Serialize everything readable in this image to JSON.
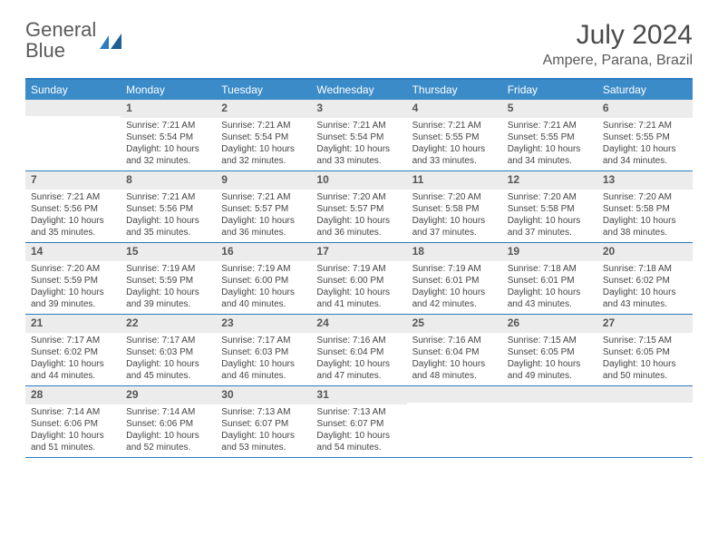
{
  "brand": {
    "part1": "General",
    "part2": "Blue"
  },
  "title": "July 2024",
  "location": "Ampere, Parana, Brazil",
  "colors": {
    "header_bar": "#3b8bc9",
    "border": "#2b7bbf",
    "daynum_bg": "#ececec",
    "text": "#444444"
  },
  "weekdays": [
    "Sunday",
    "Monday",
    "Tuesday",
    "Wednesday",
    "Thursday",
    "Friday",
    "Saturday"
  ],
  "weeks": [
    [
      {
        "n": "",
        "sr": "",
        "ss": "",
        "dl": ""
      },
      {
        "n": "1",
        "sr": "7:21 AM",
        "ss": "5:54 PM",
        "dl": "10 hours and 32 minutes."
      },
      {
        "n": "2",
        "sr": "7:21 AM",
        "ss": "5:54 PM",
        "dl": "10 hours and 32 minutes."
      },
      {
        "n": "3",
        "sr": "7:21 AM",
        "ss": "5:54 PM",
        "dl": "10 hours and 33 minutes."
      },
      {
        "n": "4",
        "sr": "7:21 AM",
        "ss": "5:55 PM",
        "dl": "10 hours and 33 minutes."
      },
      {
        "n": "5",
        "sr": "7:21 AM",
        "ss": "5:55 PM",
        "dl": "10 hours and 34 minutes."
      },
      {
        "n": "6",
        "sr": "7:21 AM",
        "ss": "5:55 PM",
        "dl": "10 hours and 34 minutes."
      }
    ],
    [
      {
        "n": "7",
        "sr": "7:21 AM",
        "ss": "5:56 PM",
        "dl": "10 hours and 35 minutes."
      },
      {
        "n": "8",
        "sr": "7:21 AM",
        "ss": "5:56 PM",
        "dl": "10 hours and 35 minutes."
      },
      {
        "n": "9",
        "sr": "7:21 AM",
        "ss": "5:57 PM",
        "dl": "10 hours and 36 minutes."
      },
      {
        "n": "10",
        "sr": "7:20 AM",
        "ss": "5:57 PM",
        "dl": "10 hours and 36 minutes."
      },
      {
        "n": "11",
        "sr": "7:20 AM",
        "ss": "5:58 PM",
        "dl": "10 hours and 37 minutes."
      },
      {
        "n": "12",
        "sr": "7:20 AM",
        "ss": "5:58 PM",
        "dl": "10 hours and 37 minutes."
      },
      {
        "n": "13",
        "sr": "7:20 AM",
        "ss": "5:58 PM",
        "dl": "10 hours and 38 minutes."
      }
    ],
    [
      {
        "n": "14",
        "sr": "7:20 AM",
        "ss": "5:59 PM",
        "dl": "10 hours and 39 minutes."
      },
      {
        "n": "15",
        "sr": "7:19 AM",
        "ss": "5:59 PM",
        "dl": "10 hours and 39 minutes."
      },
      {
        "n": "16",
        "sr": "7:19 AM",
        "ss": "6:00 PM",
        "dl": "10 hours and 40 minutes."
      },
      {
        "n": "17",
        "sr": "7:19 AM",
        "ss": "6:00 PM",
        "dl": "10 hours and 41 minutes."
      },
      {
        "n": "18",
        "sr": "7:19 AM",
        "ss": "6:01 PM",
        "dl": "10 hours and 42 minutes."
      },
      {
        "n": "19",
        "sr": "7:18 AM",
        "ss": "6:01 PM",
        "dl": "10 hours and 43 minutes."
      },
      {
        "n": "20",
        "sr": "7:18 AM",
        "ss": "6:02 PM",
        "dl": "10 hours and 43 minutes."
      }
    ],
    [
      {
        "n": "21",
        "sr": "7:17 AM",
        "ss": "6:02 PM",
        "dl": "10 hours and 44 minutes."
      },
      {
        "n": "22",
        "sr": "7:17 AM",
        "ss": "6:03 PM",
        "dl": "10 hours and 45 minutes."
      },
      {
        "n": "23",
        "sr": "7:17 AM",
        "ss": "6:03 PM",
        "dl": "10 hours and 46 minutes."
      },
      {
        "n": "24",
        "sr": "7:16 AM",
        "ss": "6:04 PM",
        "dl": "10 hours and 47 minutes."
      },
      {
        "n": "25",
        "sr": "7:16 AM",
        "ss": "6:04 PM",
        "dl": "10 hours and 48 minutes."
      },
      {
        "n": "26",
        "sr": "7:15 AM",
        "ss": "6:05 PM",
        "dl": "10 hours and 49 minutes."
      },
      {
        "n": "27",
        "sr": "7:15 AM",
        "ss": "6:05 PM",
        "dl": "10 hours and 50 minutes."
      }
    ],
    [
      {
        "n": "28",
        "sr": "7:14 AM",
        "ss": "6:06 PM",
        "dl": "10 hours and 51 minutes."
      },
      {
        "n": "29",
        "sr": "7:14 AM",
        "ss": "6:06 PM",
        "dl": "10 hours and 52 minutes."
      },
      {
        "n": "30",
        "sr": "7:13 AM",
        "ss": "6:07 PM",
        "dl": "10 hours and 53 minutes."
      },
      {
        "n": "31",
        "sr": "7:13 AM",
        "ss": "6:07 PM",
        "dl": "10 hours and 54 minutes."
      },
      {
        "n": "",
        "sr": "",
        "ss": "",
        "dl": ""
      },
      {
        "n": "",
        "sr": "",
        "ss": "",
        "dl": ""
      },
      {
        "n": "",
        "sr": "",
        "ss": "",
        "dl": ""
      }
    ]
  ],
  "labels": {
    "sunrise": "Sunrise: ",
    "sunset": "Sunset: ",
    "daylight": "Daylight: "
  }
}
